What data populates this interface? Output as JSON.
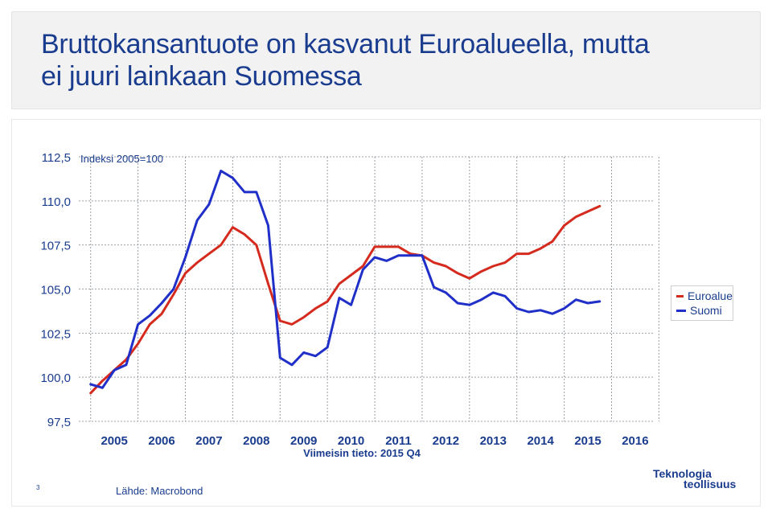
{
  "title": {
    "line1": "Bruttokansantuote on kasvanut Euroalueella, mutta",
    "line2": "ei juuri lainkaan Suomessa"
  },
  "chart_data": {
    "type": "line",
    "title": "",
    "index_label": "Indeksi 2005=100",
    "xlabel": "Viimeisin tieto: 2015 Q4",
    "ylabel": "",
    "ylim": [
      97.5,
      112.5
    ],
    "yticks": [
      97.5,
      100.0,
      102.5,
      105.0,
      107.5,
      110.0,
      112.5
    ],
    "ytick_labels": [
      "97,5",
      "100,0",
      "102,5",
      "105,0",
      "107,5",
      "110,0",
      "112,5"
    ],
    "xlim": [
      2004.75,
      2016.875
    ],
    "x_tick_labels": [
      "2005",
      "2006",
      "2007",
      "2008",
      "2009",
      "2010",
      "2011",
      "2012",
      "2013",
      "2014",
      "2015",
      "2016"
    ],
    "grid": true,
    "legend_position": "right",
    "x": [
      2005.0,
      2005.25,
      2005.5,
      2005.75,
      2006.0,
      2006.25,
      2006.5,
      2006.75,
      2007.0,
      2007.25,
      2007.5,
      2007.75,
      2008.0,
      2008.25,
      2008.5,
      2008.75,
      2009.0,
      2009.25,
      2009.5,
      2009.75,
      2010.0,
      2010.25,
      2010.5,
      2010.75,
      2011.0,
      2011.25,
      2011.5,
      2011.75,
      2012.0,
      2012.25,
      2012.5,
      2012.75,
      2013.0,
      2013.25,
      2013.5,
      2013.75,
      2014.0,
      2014.25,
      2014.5,
      2014.75,
      2015.0,
      2015.25,
      2015.5,
      2015.75
    ],
    "series": [
      {
        "name": "Euroalue",
        "color": "#d52b1e",
        "values": [
          99.1,
          99.8,
          100.4,
          101.0,
          101.9,
          103.0,
          103.6,
          104.7,
          105.9,
          106.5,
          107.0,
          107.5,
          108.5,
          108.1,
          107.5,
          105.3,
          103.2,
          103.0,
          103.4,
          103.9,
          104.3,
          105.3,
          105.8,
          106.3,
          107.4,
          107.4,
          107.4,
          107.0,
          106.9,
          106.5,
          106.3,
          105.9,
          105.6,
          106.0,
          106.3,
          106.5,
          107.0,
          107.0,
          107.3,
          107.7,
          108.6,
          109.1,
          109.4,
          109.7
        ]
      },
      {
        "name": "Suomi",
        "color": "#1f2fc8",
        "values": [
          99.6,
          99.4,
          100.4,
          100.7,
          103.0,
          103.5,
          104.2,
          105.0,
          106.8,
          108.9,
          109.8,
          111.7,
          111.3,
          110.5,
          110.5,
          108.6,
          101.1,
          100.7,
          101.4,
          101.2,
          101.7,
          104.5,
          104.1,
          106.1,
          106.8,
          106.6,
          106.9,
          106.9,
          106.9,
          105.1,
          104.8,
          104.2,
          104.1,
          104.4,
          104.8,
          104.6,
          103.9,
          103.7,
          103.8,
          103.6,
          103.9,
          104.4,
          104.2,
          104.3
        ]
      }
    ]
  },
  "footer": {
    "page_number": "3",
    "source": "Lähde: Macrobond",
    "logo_line1": "Teknologia",
    "logo_line2": "teollisuus"
  }
}
